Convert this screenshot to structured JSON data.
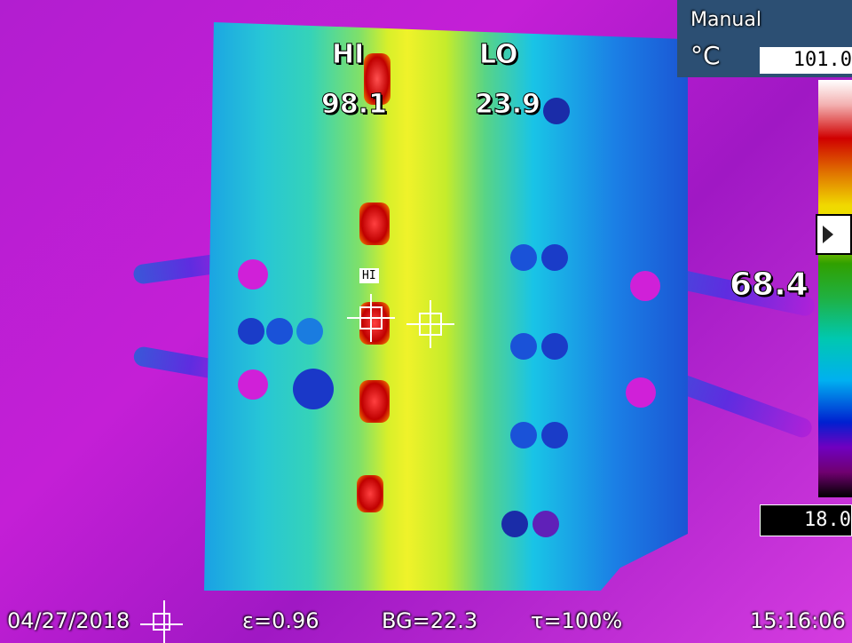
{
  "camera": {
    "mode": "Manual",
    "unit": "°C",
    "scale_max": "101.0",
    "scale_min": "18.0",
    "cursor_temp": "68.4",
    "scale_marker_level": 0.37
  },
  "labels": {
    "hi_title": "HI",
    "hi_value": "98.1",
    "lo_title": "LO",
    "lo_value": "23.9",
    "spot_tag": "HI"
  },
  "status": {
    "date": "04/27/2018",
    "emissivity": "ε=0.96",
    "background": "BG=22.3",
    "transmission": "τ=100%",
    "time": "15:16:06"
  },
  "colors": {
    "hot": "#d21e1e",
    "warm": "#f0ee20",
    "cool": "#1ab2f0",
    "cold": "#b21ed0"
  }
}
